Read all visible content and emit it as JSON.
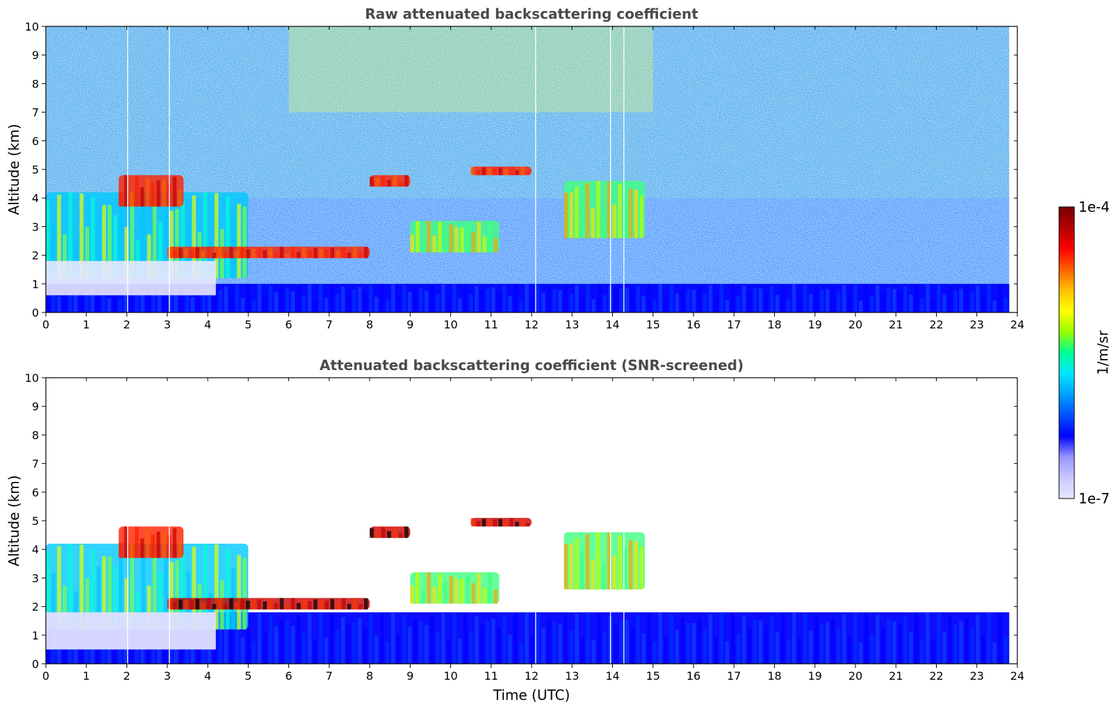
{
  "chart_data": [
    {
      "type": "heatmap",
      "title": "Raw attenuated backscattering coefficient",
      "xlabel": "",
      "ylabel": "Altitude (km)",
      "xlim": [
        0,
        24
      ],
      "ylim": [
        0,
        10
      ],
      "xticks": [
        "0",
        "1",
        "2",
        "3",
        "4",
        "5",
        "6",
        "7",
        "8",
        "9",
        "10",
        "11",
        "12",
        "13",
        "14",
        "15",
        "16",
        "17",
        "18",
        "19",
        "20",
        "21",
        "22",
        "23",
        "24"
      ],
      "yticks": [
        "0",
        "1",
        "2",
        "3",
        "4",
        "5",
        "6",
        "7",
        "8",
        "9",
        "10"
      ],
      "features": [
        {
          "kind": "boundary_layer",
          "x": [
            0,
            23.8
          ],
          "y": [
            0,
            1.0
          ],
          "level": "blue"
        },
        {
          "kind": "low_cloud_layer",
          "x": [
            0,
            5.0
          ],
          "y": [
            1.2,
            4.2
          ],
          "level": "cyan-yellow"
        },
        {
          "kind": "cloud_layer",
          "x": [
            3.0,
            8.0
          ],
          "y": [
            1.9,
            2.3
          ],
          "level": "red"
        },
        {
          "kind": "cloud_layer",
          "x": [
            1.8,
            3.4
          ],
          "y": [
            3.7,
            4.8
          ],
          "level": "red"
        },
        {
          "kind": "cloud_layer",
          "x": [
            8.0,
            9.0
          ],
          "y": [
            4.4,
            4.8
          ],
          "level": "red"
        },
        {
          "kind": "cloud_layer",
          "x": [
            10.5,
            12.0
          ],
          "y": [
            4.8,
            5.1
          ],
          "level": "red"
        },
        {
          "kind": "mid_cloud",
          "x": [
            9.0,
            11.2
          ],
          "y": [
            2.1,
            3.2
          ],
          "level": "green-yellow"
        },
        {
          "kind": "mid_cloud",
          "x": [
            12.8,
            14.8
          ],
          "y": [
            2.6,
            4.6
          ],
          "level": "green-yellow"
        },
        {
          "kind": "noisy_background",
          "x": [
            0,
            23.8
          ],
          "y": [
            1.0,
            10
          ],
          "level": "noise"
        }
      ]
    },
    {
      "type": "heatmap",
      "title": "Attenuated backscattering coefficient (SNR-screened)",
      "xlabel": "Time (UTC)",
      "ylabel": "Altitude (km)",
      "xlim": [
        0,
        24
      ],
      "ylim": [
        0,
        10
      ],
      "xticks": [
        "0",
        "1",
        "2",
        "3",
        "4",
        "5",
        "6",
        "7",
        "8",
        "9",
        "10",
        "11",
        "12",
        "13",
        "14",
        "15",
        "16",
        "17",
        "18",
        "19",
        "20",
        "21",
        "22",
        "23",
        "24"
      ],
      "yticks": [
        "0",
        "1",
        "2",
        "3",
        "4",
        "5",
        "6",
        "7",
        "8",
        "9",
        "10"
      ],
      "features": [
        {
          "kind": "boundary_layer",
          "x": [
            0,
            23.8
          ],
          "y": [
            0,
            1.8
          ],
          "level": "blue"
        },
        {
          "kind": "low_cloud_layer",
          "x": [
            0,
            5.0
          ],
          "y": [
            1.2,
            4.2
          ],
          "level": "cyan-yellow"
        },
        {
          "kind": "cloud_layer",
          "x": [
            3.0,
            8.0
          ],
          "y": [
            1.9,
            2.3
          ],
          "level": "red-black"
        },
        {
          "kind": "cloud_layer",
          "x": [
            1.8,
            3.4
          ],
          "y": [
            3.7,
            4.8
          ],
          "level": "red"
        },
        {
          "kind": "cloud_layer",
          "x": [
            8.0,
            9.0
          ],
          "y": [
            4.4,
            4.8
          ],
          "level": "red-black"
        },
        {
          "kind": "cloud_layer",
          "x": [
            10.5,
            12.0
          ],
          "y": [
            4.8,
            5.1
          ],
          "level": "red-black"
        },
        {
          "kind": "mid_cloud",
          "x": [
            9.0,
            11.2
          ],
          "y": [
            2.1,
            3.2
          ],
          "level": "green-yellow"
        },
        {
          "kind": "mid_cloud",
          "x": [
            12.8,
            14.8
          ],
          "y": [
            2.6,
            4.6
          ],
          "level": "green-yellow"
        }
      ]
    }
  ],
  "colorbar": {
    "label": "1/m/sr",
    "max_label": "1e-4",
    "min_label": "1e-7",
    "scale": "log",
    "colors": [
      "#e6e6ff",
      "#c8c8ff",
      "#9696ff",
      "#0000ff",
      "#0050ff",
      "#00a0ff",
      "#00e6ff",
      "#00ff96",
      "#96ff00",
      "#ffff00",
      "#ffc000",
      "#ff6000",
      "#ff0000",
      "#b40000",
      "#780000"
    ]
  }
}
